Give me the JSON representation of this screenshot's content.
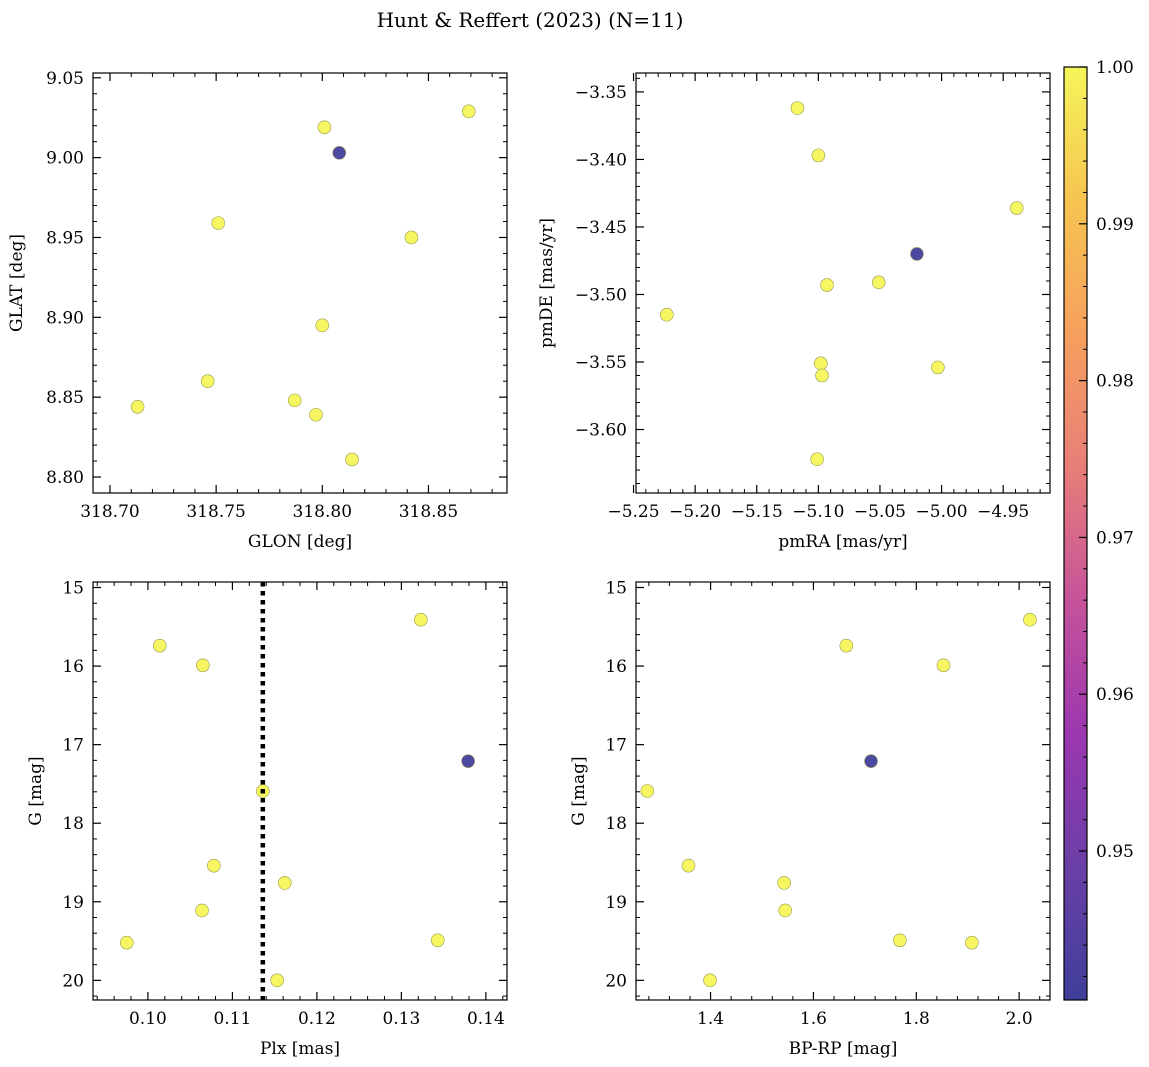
{
  "title": "Hunt & Reffert (2023) (N=11)",
  "colorbar": {
    "ticks": [
      "0.95",
      "0.96",
      "0.97",
      "0.98",
      "0.99",
      "1.00"
    ],
    "tick_values": [
      0.95,
      0.96,
      0.97,
      0.98,
      0.99,
      1.0
    ],
    "range": [
      0.9405,
      1.0
    ],
    "colormap": "plasma",
    "colors": [
      "#3f3f9a",
      "#6a3fa6",
      "#9c37b0",
      "#c6539a",
      "#e87e78",
      "#f6a05e",
      "#f6c450",
      "#f5f55b"
    ]
  },
  "colors": {
    "member_low": "#3f3f9a",
    "member_high": "#f2f24e",
    "reference_line": "#000000"
  },
  "chart_data": [
    {
      "type": "scatter",
      "xlabel": "GLON [deg]",
      "ylabel": "GLAT [deg]",
      "xlim": [
        318.692,
        318.887
      ],
      "ylim": [
        8.79,
        9.053
      ],
      "xticks": [
        318.7,
        318.75,
        318.8,
        318.85
      ],
      "xtick_labels": [
        "318.70",
        "318.75",
        "318.80",
        "318.85"
      ],
      "yticks": [
        8.8,
        8.85,
        8.9,
        8.95,
        9.0,
        9.05
      ],
      "ytick_labels": [
        "8.80",
        "8.85",
        "8.90",
        "8.95",
        "9.00",
        "9.05"
      ],
      "invert_y": false,
      "points": [
        {
          "x": 318.713,
          "y": 8.844,
          "c": 1.0
        },
        {
          "x": 318.746,
          "y": 8.86,
          "c": 1.0
        },
        {
          "x": 318.751,
          "y": 8.959,
          "c": 1.0
        },
        {
          "x": 318.787,
          "y": 8.848,
          "c": 1.0
        },
        {
          "x": 318.797,
          "y": 8.839,
          "c": 1.0
        },
        {
          "x": 318.8,
          "y": 8.895,
          "c": 1.0
        },
        {
          "x": 318.801,
          "y": 9.019,
          "c": 1.0
        },
        {
          "x": 318.808,
          "y": 9.003,
          "c": 0.941
        },
        {
          "x": 318.814,
          "y": 8.811,
          "c": 1.0
        },
        {
          "x": 318.842,
          "y": 8.95,
          "c": 1.0
        },
        {
          "x": 318.869,
          "y": 9.029,
          "c": 1.0
        }
      ]
    },
    {
      "type": "scatter",
      "xlabel": "pmRA [mas/yr]",
      "ylabel": "pmDE [mas/yr]",
      "xlim": [
        -5.248,
        -4.912
      ],
      "ylim": [
        -3.647,
        -3.336
      ],
      "xticks": [
        -5.25,
        -5.2,
        -5.15,
        -5.1,
        -5.05,
        -5.0,
        -4.95
      ],
      "xtick_labels": [
        "−5.25",
        "−5.20",
        "−5.15",
        "−5.10",
        "−5.05",
        "−5.00",
        "−4.95"
      ],
      "yticks": [
        -3.6,
        -3.55,
        -3.5,
        -3.45,
        -3.4,
        -3.35
      ],
      "ytick_labels": [
        "−3.60",
        "−3.55",
        "−3.50",
        "−3.45",
        "−3.40",
        "−3.35"
      ],
      "invert_y": false,
      "points": [
        {
          "x": -5.117,
          "y": -3.362,
          "c": 1.0
        },
        {
          "x": -5.1,
          "y": -3.397,
          "c": 1.0
        },
        {
          "x": -4.939,
          "y": -3.436,
          "c": 1.0
        },
        {
          "x": -5.02,
          "y": -3.47,
          "c": 0.941
        },
        {
          "x": -5.051,
          "y": -3.491,
          "c": 1.0
        },
        {
          "x": -5.093,
          "y": -3.493,
          "c": 1.0
        },
        {
          "x": -5.223,
          "y": -3.515,
          "c": 1.0
        },
        {
          "x": -5.098,
          "y": -3.551,
          "c": 1.0
        },
        {
          "x": -5.003,
          "y": -3.554,
          "c": 1.0
        },
        {
          "x": -5.097,
          "y": -3.56,
          "c": 1.0
        },
        {
          "x": -5.101,
          "y": -3.622,
          "c": 1.0
        }
      ]
    },
    {
      "type": "scatter",
      "xlabel": "Plx [mas]",
      "ylabel": "G [mag]",
      "xlim": [
        0.0935,
        0.1425
      ],
      "ylim": [
        14.93,
        20.25
      ],
      "xticks": [
        0.1,
        0.11,
        0.12,
        0.13,
        0.14
      ],
      "xtick_labels": [
        "0.10",
        "0.11",
        "0.12",
        "0.13",
        "0.14"
      ],
      "yticks": [
        15,
        16,
        17,
        18,
        19,
        20
      ],
      "ytick_labels": [
        "15",
        "16",
        "17",
        "18",
        "19",
        "20"
      ],
      "invert_y": true,
      "vline": 0.1136,
      "points": [
        {
          "x": 0.1323,
          "y": 15.41,
          "c": 1.0
        },
        {
          "x": 0.1014,
          "y": 15.74,
          "c": 1.0
        },
        {
          "x": 0.1065,
          "y": 15.99,
          "c": 1.0
        },
        {
          "x": 0.1379,
          "y": 17.21,
          "c": 0.941
        },
        {
          "x": 0.1136,
          "y": 17.59,
          "c": 1.0
        },
        {
          "x": 0.1078,
          "y": 18.54,
          "c": 1.0
        },
        {
          "x": 0.1162,
          "y": 18.76,
          "c": 1.0
        },
        {
          "x": 0.1064,
          "y": 19.11,
          "c": 1.0
        },
        {
          "x": 0.1343,
          "y": 19.49,
          "c": 1.0
        },
        {
          "x": 0.0975,
          "y": 19.52,
          "c": 1.0
        },
        {
          "x": 0.1153,
          "y": 20.0,
          "c": 1.0
        }
      ]
    },
    {
      "type": "scatter",
      "xlabel": "BP-RP [mag]",
      "ylabel": "G [mag]",
      "xlim": [
        1.255,
        2.06
      ],
      "ylim": [
        14.93,
        20.25
      ],
      "xticks": [
        1.4,
        1.6,
        1.8,
        2.0
      ],
      "xtick_labels": [
        "1.4",
        "1.6",
        "1.8",
        "2.0"
      ],
      "yticks": [
        15,
        16,
        17,
        18,
        19,
        20
      ],
      "ytick_labels": [
        "15",
        "16",
        "17",
        "18",
        "19",
        "20"
      ],
      "invert_y": true,
      "points": [
        {
          "x": 2.021,
          "y": 15.41,
          "c": 1.0
        },
        {
          "x": 1.664,
          "y": 15.74,
          "c": 1.0
        },
        {
          "x": 1.853,
          "y": 15.99,
          "c": 1.0
        },
        {
          "x": 1.712,
          "y": 17.21,
          "c": 0.941
        },
        {
          "x": 1.277,
          "y": 17.59,
          "c": 1.0
        },
        {
          "x": 1.357,
          "y": 18.54,
          "c": 1.0
        },
        {
          "x": 1.543,
          "y": 18.76,
          "c": 1.0
        },
        {
          "x": 1.545,
          "y": 19.11,
          "c": 1.0
        },
        {
          "x": 1.768,
          "y": 19.49,
          "c": 1.0
        },
        {
          "x": 1.908,
          "y": 19.52,
          "c": 1.0
        },
        {
          "x": 1.399,
          "y": 20.0,
          "c": 1.0
        }
      ]
    }
  ]
}
